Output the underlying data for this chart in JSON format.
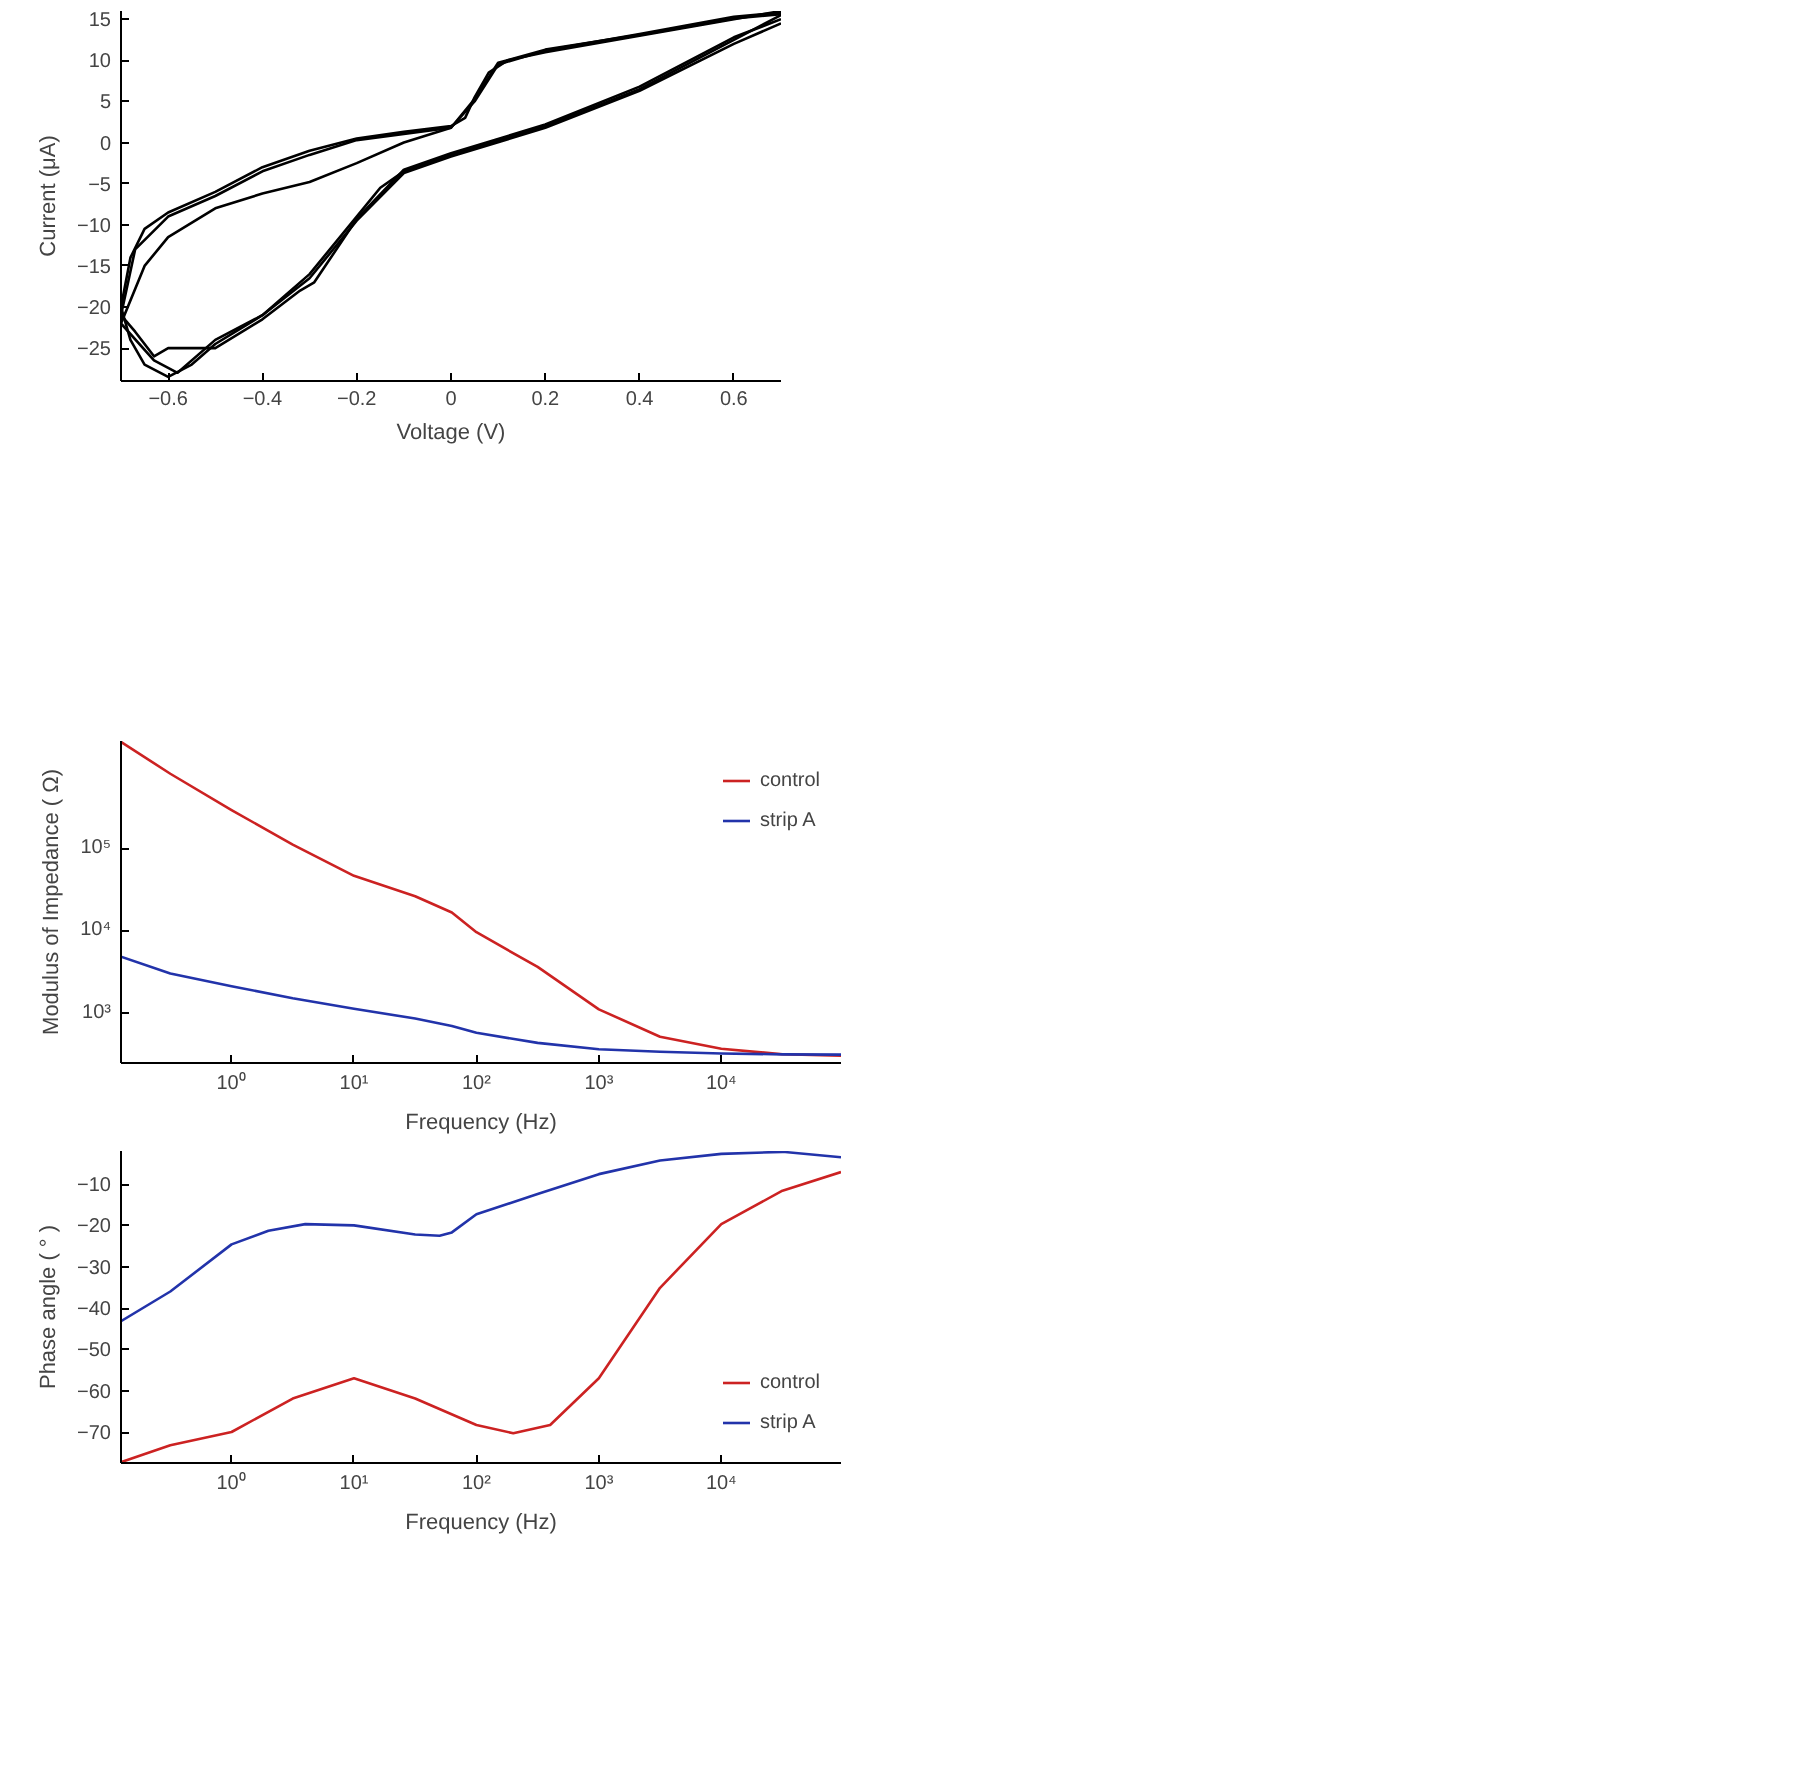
{
  "chart_data": [
    {
      "type": "line",
      "xlabel": "Voltage (V)",
      "ylabel": "Current (μA)",
      "xlim": [
        -0.7,
        0.7
      ],
      "ylim": [
        -29,
        16
      ],
      "xticks": [
        -0.6,
        -0.4,
        -0.2,
        0,
        0.2,
        0.4,
        0.6
      ],
      "yticks": [
        -25,
        -20,
        -15,
        -10,
        -5,
        0,
        5,
        10,
        15
      ],
      "grid": false,
      "legend": false,
      "series": [
        {
          "color": "#000000",
          "x": [
            0.7,
            0.6,
            0.4,
            0.2,
            0,
            -0.1,
            -0.15,
            -0.2,
            -0.3,
            -0.4,
            -0.5,
            -0.55,
            -0.6,
            -0.65,
            -0.68,
            -0.7,
            -0.68,
            -0.65,
            -0.6,
            -0.5,
            -0.4,
            -0.3,
            -0.2,
            -0.1,
            0,
            0.03,
            0.05,
            0.08,
            0.12,
            0.2,
            0.3,
            0.4,
            0.5,
            0.6,
            0.7
          ],
          "values": [
            15.5,
            12.5,
            6.5,
            2,
            -1.5,
            -3.5,
            -5.5,
            -9,
            -16,
            -21,
            -24.5,
            -27,
            -28.5,
            -27,
            -24,
            -20,
            -14,
            -10.5,
            -8.5,
            -6,
            -3,
            -1,
            0.5,
            1.3,
            2,
            3,
            5.5,
            8.5,
            10,
            11,
            12,
            13,
            14,
            15,
            16
          ]
        },
        {
          "color": "#000000",
          "x": [
            0.7,
            0.6,
            0.4,
            0.2,
            0,
            -0.1,
            -0.2,
            -0.29,
            -0.32,
            -0.4,
            -0.5,
            -0.55,
            -0.6,
            -0.63,
            -0.67,
            -0.7,
            -0.67,
            -0.6,
            -0.5,
            -0.4,
            -0.3,
            -0.2,
            0,
            0.05,
            0.1,
            0.2,
            0.4,
            0.6,
            0.7
          ],
          "values": [
            15,
            12.8,
            6.8,
            2.2,
            -1.3,
            -3.3,
            -9.3,
            -17,
            -18,
            -21.5,
            -25,
            -25,
            -25,
            -26,
            -23,
            -21,
            -13,
            -9,
            -6.5,
            -3.5,
            -1.5,
            0.3,
            1.8,
            5,
            9.5,
            11.2,
            13.2,
            15.3,
            15.8
          ]
        },
        {
          "color": "#000000",
          "x": [
            0.7,
            0.6,
            0.4,
            0.2,
            0,
            -0.1,
            -0.2,
            -0.3,
            -0.4,
            -0.5,
            -0.58,
            -0.63,
            -0.7,
            -0.65,
            -0.6,
            -0.5,
            -0.4,
            -0.3,
            -0.2,
            -0.1,
            0,
            0.05,
            0.1,
            0.2,
            0.4,
            0.6,
            0.7
          ],
          "values": [
            14.5,
            12,
            6.3,
            1.8,
            -1.7,
            -3.7,
            -9.5,
            -16.5,
            -21,
            -24,
            -28,
            -26.5,
            -22,
            -15,
            -11.5,
            -8,
            -6.2,
            -4.8,
            -2.5,
            0,
            1.8,
            5.3,
            9.7,
            11.3,
            13.1,
            15.1,
            15.6
          ]
        }
      ]
    },
    {
      "type": "line",
      "xlabel": "Frequency (Hz)",
      "ylabel": "Modulus of Impedance ( Ω)",
      "log": "xy",
      "xlim": [
        0.125,
        95000
      ],
      "ylim": [
        245,
        2000000
      ],
      "xticks": [
        {
          "value": 1,
          "label": "10⁰"
        },
        {
          "value": 10,
          "label": "10¹"
        },
        {
          "value": 100,
          "label": "10²"
        },
        {
          "value": 1000,
          "label": "10³"
        },
        {
          "value": 10000,
          "label": "10⁴"
        }
      ],
      "yticks": [
        {
          "value": 1000,
          "label": "10³"
        },
        {
          "value": 10000,
          "label": "10⁴"
        },
        {
          "value": 100000,
          "label": "10⁵"
        }
      ],
      "grid": false,
      "legend": "top right",
      "x": [
        0.125,
        0.316,
        1,
        3.16,
        10,
        31.6,
        63,
        100,
        316,
        1000,
        3160,
        10000,
        31600,
        95000
      ],
      "series": [
        {
          "name": "control",
          "color": "#cc2222",
          "values": [
            1950000,
            800000,
            290000,
            110000,
            46000,
            26000,
            16500,
            9500,
            3600,
            1100,
            510,
            365,
            313,
            300
          ]
        },
        {
          "name": "strip A",
          "color": "#2233aa",
          "values": [
            4800,
            3000,
            2100,
            1500,
            1120,
            850,
            690,
            570,
            430,
            360,
            335,
            320,
            312,
            310
          ]
        }
      ]
    },
    {
      "type": "line",
      "xlabel": "Frequency (Hz)",
      "ylabel": "Phase angle ( ° )",
      "log": "x",
      "xlim": [
        0.125,
        95000
      ],
      "ylim": [
        -77.5,
        -2
      ],
      "xticks": [
        {
          "value": 1,
          "label": "10⁰"
        },
        {
          "value": 10,
          "label": "10¹"
        },
        {
          "value": 100,
          "label": "10²"
        },
        {
          "value": 1000,
          "label": "10³"
        },
        {
          "value": 10000,
          "label": "10⁴"
        }
      ],
      "yticks": [
        -70,
        -60,
        -50,
        -40,
        -30,
        -20,
        -10
      ],
      "grid": false,
      "legend": "bottom right",
      "series": [
        {
          "name": "control",
          "color": "#cc2222",
          "x": [
            0.125,
            0.316,
            1,
            3.16,
            10,
            31.6,
            100,
            200,
            400,
            1000,
            3160,
            10000,
            31600,
            95000
          ],
          "values": [
            -77.3,
            -73.2,
            -70,
            -61.9,
            -57,
            -61.9,
            -68.3,
            -70.3,
            -68.3,
            -57,
            -35.1,
            -19.7,
            -11.6,
            -7.1
          ]
        },
        {
          "name": "strip A",
          "color": "#2233aa",
          "x": [
            0.125,
            0.316,
            1,
            2,
            4,
            10,
            31.6,
            50,
            63,
            100,
            316,
            1000,
            3160,
            10000,
            31600,
            95000
          ],
          "values": [
            -43.2,
            -36,
            -24.6,
            -21.3,
            -19.7,
            -20,
            -22.2,
            -22.5,
            -21.7,
            -17.3,
            -12.4,
            -7.6,
            -4.3,
            -2.7,
            -2.2,
            -3.5
          ]
        }
      ]
    }
  ]
}
